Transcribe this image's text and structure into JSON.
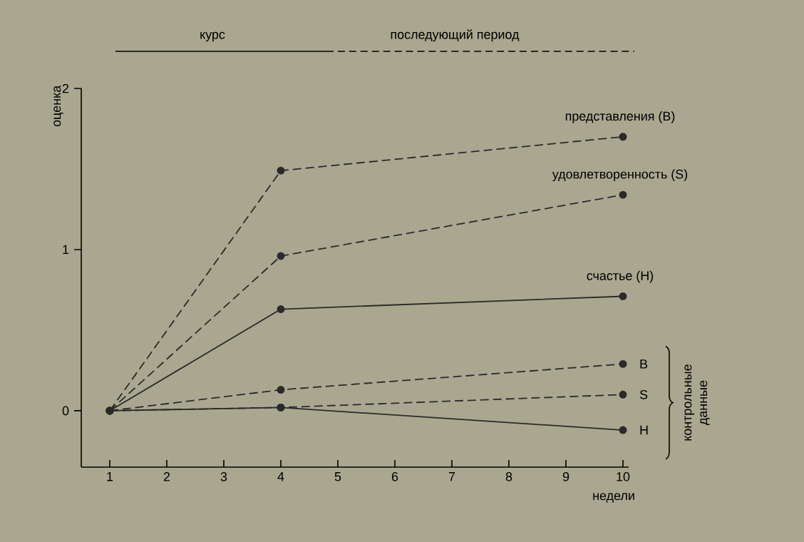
{
  "chart_data": {
    "type": "line",
    "ylabel": "оценка",
    "xlabel": "недели",
    "x": [
      1,
      4,
      10
    ],
    "series": [
      {
        "name": "представления (B)",
        "color": "#2a2a2a",
        "line_style": "dashed",
        "values": [
          0,
          1.49,
          1.7
        ]
      },
      {
        "name": "удовлетворенность (S)",
        "color": "#2a2a2a",
        "line_style": "dashed",
        "values": [
          0,
          0.96,
          1.34
        ]
      },
      {
        "name": "счастье (H)",
        "color": "#2a2a2a",
        "line_style": "solid",
        "values": [
          0,
          0.63,
          0.71
        ]
      },
      {
        "name": "B",
        "color": "#2a2a2a",
        "line_style": "dashed",
        "values": [
          0,
          0.13,
          0.29
        ]
      },
      {
        "name": "S",
        "color": "#2a2a2a",
        "line_style": "dashed",
        "values": [
          0,
          0.02,
          0.1
        ]
      },
      {
        "name": "H",
        "color": "#2a2a2a",
        "line_style": "solid",
        "values": [
          0,
          0.02,
          -0.12
        ]
      }
    ],
    "marker": "circle",
    "xlim": [
      0.5,
      10.1
    ],
    "xticks": [
      1,
      2,
      3,
      4,
      5,
      6,
      7,
      8,
      9,
      10
    ],
    "ylim": [
      -0.35,
      2
    ],
    "yticks": [
      0,
      1,
      2
    ],
    "annotations": [
      "курс",
      "последующий период",
      "контрольные данные"
    ]
  }
}
